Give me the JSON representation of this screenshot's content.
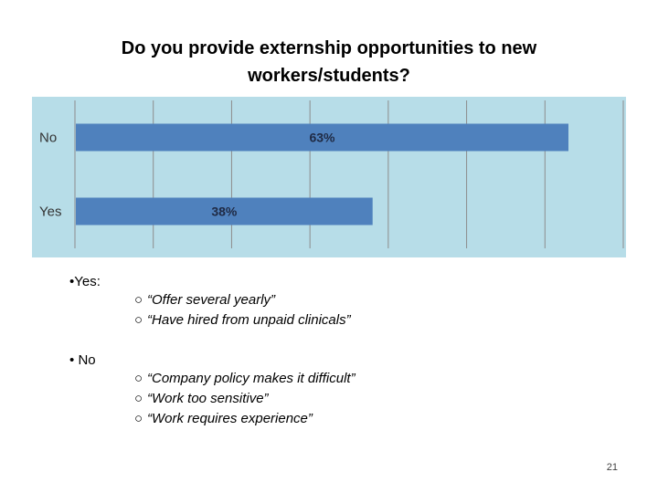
{
  "slide": {
    "title_line1": "Do you provide externship opportunities to new",
    "title_line2": "workers/students?",
    "page_number": "21"
  },
  "chart_data": {
    "type": "bar",
    "orientation": "horizontal",
    "categories": [
      "No",
      "Yes"
    ],
    "values": [
      63,
      38
    ],
    "value_labels": [
      "63%",
      "38%"
    ],
    "xlim": [
      0,
      70
    ],
    "grid": true,
    "colors": {
      "background": "#b7dde8",
      "bar": "#4f81bd",
      "gridline": "#8c8c8c"
    }
  },
  "notes": {
    "yes_label": "Yes:",
    "yes_items": [
      "“Offer several yearly”",
      "“Have hired from unpaid clinicals”"
    ],
    "no_label": "No",
    "no_items": [
      "“Company policy makes it difficult”",
      "“Work too sensitive”",
      "“Work requires experience”"
    ],
    "bullet_glyph": "•",
    "sub_glyph": "○"
  }
}
